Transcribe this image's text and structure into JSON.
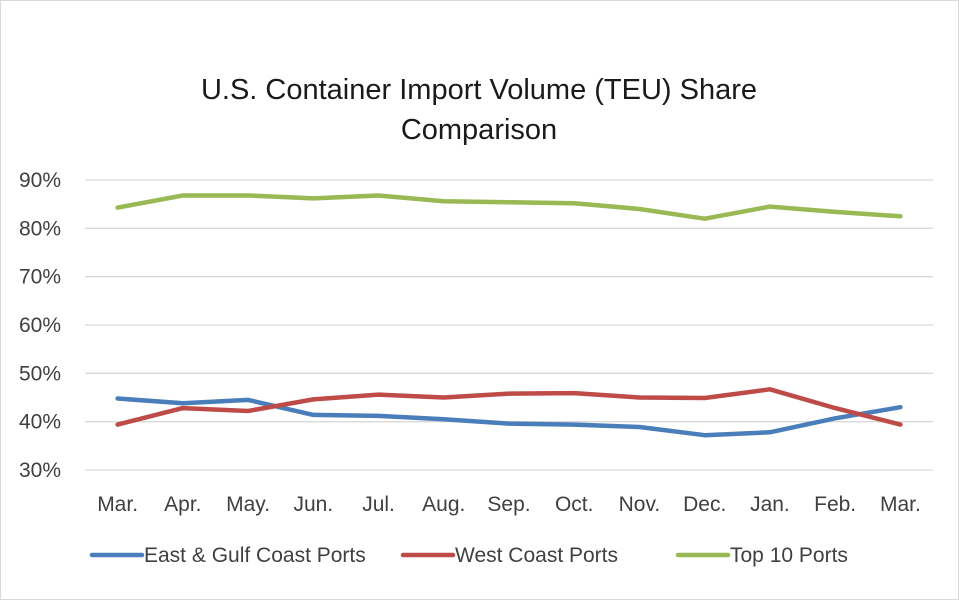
{
  "chart_data": {
    "type": "line",
    "title": "U.S. Container Import Volume (TEU) Share Comparison",
    "title_lines": [
      "U.S. Container Import Volume (TEU) Share",
      "Comparison"
    ],
    "categories": [
      "Mar.",
      "Apr.",
      "May.",
      "Jun.",
      "Jul.",
      "Aug.",
      "Sep.",
      "Oct.",
      "Nov.",
      "Dec.",
      "Jan.",
      "Feb.",
      "Mar."
    ],
    "ylim": [
      30,
      90
    ],
    "yticks": [
      {
        "value": 90,
        "label": "90%"
      },
      {
        "value": 80,
        "label": "80%"
      },
      {
        "value": 70,
        "label": "70%"
      },
      {
        "value": 60,
        "label": "60%"
      },
      {
        "value": 50,
        "label": "50%"
      },
      {
        "value": 40,
        "label": "40%"
      },
      {
        "value": 30,
        "label": "30%"
      }
    ],
    "grid": true,
    "legend_position": "bottom",
    "series": [
      {
        "name": "East & Gulf Coast Ports",
        "color": "#4a7ebb",
        "values": [
          44.8,
          43.8,
          44.5,
          41.4,
          41.2,
          40.5,
          39.6,
          39.4,
          38.9,
          37.2,
          37.8,
          40.7,
          43.0
        ]
      },
      {
        "name": "West Coast Ports",
        "color": "#be4b48",
        "values": [
          39.4,
          42.8,
          42.2,
          44.6,
          45.6,
          45.0,
          45.8,
          45.9,
          45.0,
          44.9,
          46.7,
          42.8,
          39.4
        ]
      },
      {
        "name": "Top 10 Ports",
        "color": "#98b954",
        "values": [
          84.3,
          86.8,
          86.8,
          86.2,
          86.8,
          85.6,
          85.4,
          85.2,
          84.0,
          82.0,
          84.5,
          83.4,
          82.5
        ]
      }
    ]
  }
}
